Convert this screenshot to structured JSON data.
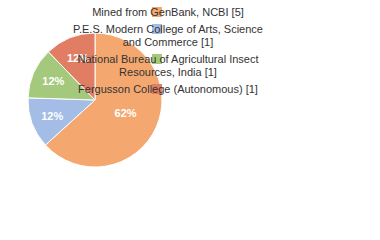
{
  "chart_data": {
    "type": "pie",
    "categories": [
      "Mined from GenBank, NCBI [5]",
      "P.E.S. Modern College of Arts, Science and Commerce [1]",
      "National Bureau of Agricultural Insect Resources, India [1]",
      "Fergusson College (Autonomous) [1]"
    ],
    "values": [
      62,
      12,
      12,
      12
    ],
    "value_labels": [
      "62%",
      "12%",
      "12%",
      "12%"
    ],
    "colors": [
      "#f4a870",
      "#a3bde6",
      "#a5c97c",
      "#e07d62"
    ],
    "data_labels": true,
    "legend": "right"
  }
}
